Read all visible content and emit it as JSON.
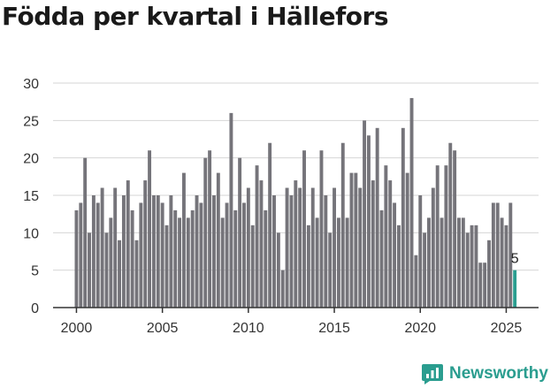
{
  "page": {
    "title": "Födda per kvartal i Hällefors"
  },
  "brand": {
    "name": "Newsworthy",
    "icon": "newsworthy-logo-icon",
    "color": "#2a9d8f"
  },
  "colors": {
    "bar": "#75747a",
    "highlight": "#2a9d8f",
    "grid": "#d6d6d6",
    "axis": "#333333"
  },
  "chart_data": {
    "type": "bar",
    "title": "Födda per kvartal i Hällefors",
    "xlabel": "",
    "ylabel": "",
    "ylim": [
      0,
      30
    ],
    "yticks": [
      0,
      5,
      10,
      15,
      20,
      25,
      30
    ],
    "xticks": [
      2000,
      2005,
      2010,
      2015,
      2020,
      2025
    ],
    "grid": true,
    "start_year": 2000,
    "start_quarter": 1,
    "values": [
      13,
      14,
      20,
      10,
      15,
      14,
      16,
      10,
      12,
      16,
      9,
      15,
      17,
      13,
      9,
      14,
      17,
      21,
      15,
      15,
      14,
      11,
      15,
      13,
      12,
      18,
      12,
      13,
      15,
      14,
      20,
      21,
      15,
      18,
      12,
      14,
      26,
      13,
      20,
      14,
      16,
      11,
      19,
      17,
      13,
      22,
      15,
      10,
      5,
      16,
      15,
      17,
      16,
      21,
      11,
      16,
      12,
      21,
      15,
      10,
      16,
      12,
      22,
      12,
      18,
      18,
      16,
      25,
      23,
      17,
      24,
      13,
      19,
      17,
      14,
      11,
      24,
      18,
      28,
      7,
      15,
      10,
      12,
      16,
      19,
      12,
      19,
      22,
      21,
      12,
      12,
      10,
      11,
      11,
      6,
      6,
      9,
      14,
      14,
      12,
      11,
      14,
      5
    ],
    "highlight_last": true,
    "annotation": "5"
  }
}
